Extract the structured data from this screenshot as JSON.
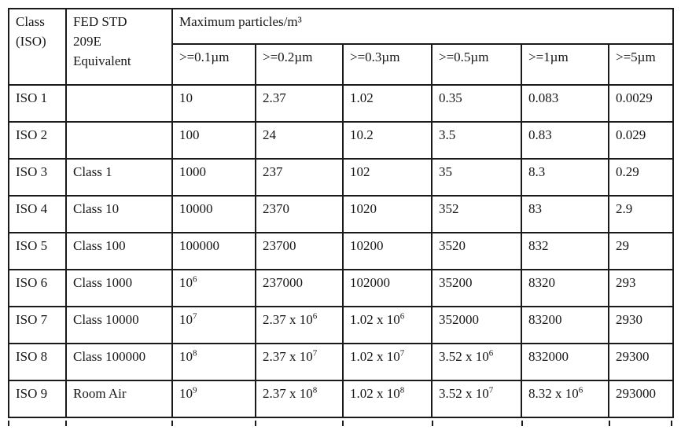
{
  "document": {
    "type": "cleanroom-classification-table",
    "colors": {
      "background": "#ffffff",
      "border": "#1a1a1a",
      "text": "#161616"
    }
  },
  "table": {
    "header": {
      "col_class": [
        "Class",
        "(ISO)"
      ],
      "col_fed": [
        "FED STD",
        "209E",
        "Equivalent"
      ],
      "particles_title": "Maximum particles/m³",
      "size_headers": [
        ">=0.1µm",
        ">=0.2µm",
        ">=0.3µm",
        ">=0.5µm",
        ">=1µm",
        ">=5µm"
      ]
    },
    "rows": [
      {
        "class_iso": "ISO 1",
        "fed_std": "",
        "values": [
          "10",
          "2.37",
          "1.02",
          "0.35",
          "0.083",
          "0.0029"
        ]
      },
      {
        "class_iso": "ISO 2",
        "fed_std": "",
        "values": [
          "100",
          "24",
          "10.2",
          "3.5",
          "0.83",
          "0.029"
        ]
      },
      {
        "class_iso": "ISO 3",
        "fed_std": "Class 1",
        "values": [
          "1000",
          "237",
          "102",
          "35",
          "8.3",
          "0.29"
        ]
      },
      {
        "class_iso": "ISO 4",
        "fed_std": "Class 10",
        "values": [
          "10000",
          "2370",
          "1020",
          "352",
          "83",
          "2.9"
        ]
      },
      {
        "class_iso": "ISO 5",
        "fed_std": "Class 100",
        "values": [
          "100000",
          "23700",
          "10200",
          "3520",
          "832",
          "29"
        ]
      },
      {
        "class_iso": "ISO 6",
        "fed_std": "Class 1000",
        "values": [
          "10^6",
          "237000",
          "102000",
          "35200",
          "8320",
          "293"
        ]
      },
      {
        "class_iso": "ISO 7",
        "fed_std": "Class 10000",
        "values": [
          "10^7",
          "2.37 x 10^6",
          "1.02 x 10^6",
          "352000",
          "83200",
          "2930"
        ]
      },
      {
        "class_iso": "ISO 8",
        "fed_std": "Class 100000",
        "values": [
          "10^8",
          "2.37 x 10^7",
          "1.02 x 10^7",
          "3.52 x 10^6",
          "832000",
          "29300"
        ]
      },
      {
        "class_iso": "ISO 9",
        "fed_std": "Room Air",
        "values": [
          "10^9",
          "2.37 x 10^8",
          "1.02 x 10^8",
          "3.52 x 10^7",
          "8.32 x 10^6",
          "293000"
        ]
      }
    ]
  }
}
